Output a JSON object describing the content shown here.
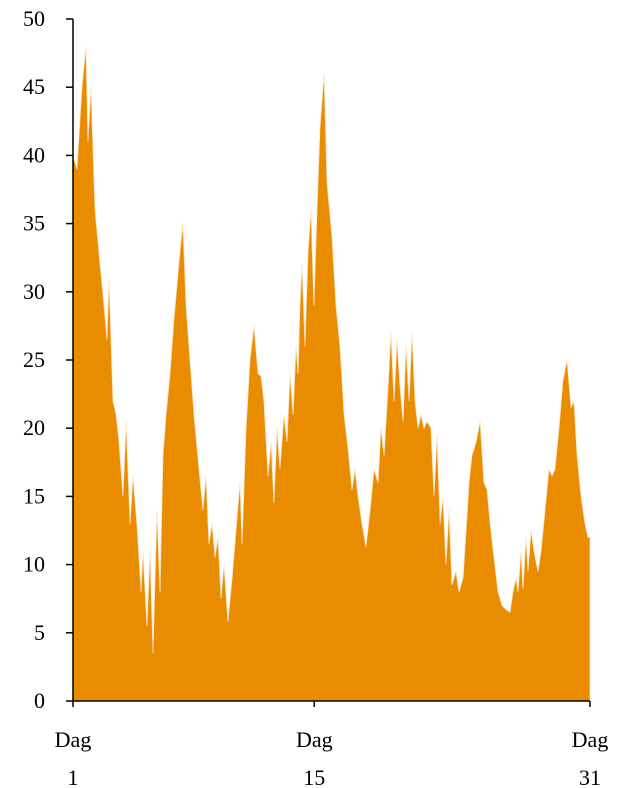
{
  "chart_data": {
    "type": "area",
    "color": "#ea8c00",
    "x": [
      1,
      1.23,
      1.52,
      1.75,
      1.87,
      2.04,
      2.28,
      2.57,
      2.8,
      2.97,
      3.09,
      3.32,
      3.5,
      3.67,
      3.9,
      4.08,
      4.31,
      4.48,
      4.71,
      4.95,
      5.06,
      5.29,
      5.47,
      5.64,
      5.87,
      6.05,
      6.22,
      6.4,
      6.63,
      6.86,
      7.21,
      7.38,
      7.56,
      7.79,
      8.02,
      8.31,
      8.54,
      8.72,
      8.89,
      9.07,
      9.24,
      9.41,
      9.59,
      9.76,
      9.99,
      10.23,
      10.46,
      10.69,
      10.81,
      11.04,
      11.27,
      11.5,
      11.74,
      11.91,
      12.08,
      12.32,
      12.49,
      12.66,
      12.84,
      13.01,
      13.24,
      13.42,
      13.59,
      13.77,
      13.94,
      14.06,
      14.17,
      14.29,
      14.46,
      14.64,
      14.81,
      14.98,
      15.16,
      15.33,
      15.57,
      15.74,
      16.03,
      16.26,
      16.49,
      16.73,
      16.96,
      17.19,
      17.36,
      17.54,
      17.77,
      18,
      18.24,
      18.47,
      18.7,
      18.87,
      19.05,
      19.28,
      19.45,
      19.63,
      19.8,
      19.98,
      20.15,
      20.32,
      20.5,
      20.67,
      20.85,
      21.02,
      21.19,
      21.37,
      21.54,
      21.77,
      21.95,
      22.12,
      22.3,
      22.47,
      22.64,
      22.82,
      22.99,
      23.22,
      23.4,
      23.63,
      23.81,
      23.98,
      24.15,
      24.39,
      24.62,
      24.85,
      25.03,
      25.2,
      25.43,
      25.66,
      25.9,
      26.13,
      26.36,
      26.53,
      26.71,
      26.82,
      27,
      27.11,
      27.29,
      27.4,
      27.58,
      27.75,
      27.98,
      28.16,
      28.39,
      28.62,
      28.8,
      28.97,
      29.2,
      29.43,
      29.67,
      29.9,
      30.07,
      30.25,
      30.48,
      30.71,
      30.88,
      31
    ],
    "values": [
      40,
      39,
      45,
      48,
      41,
      45,
      36,
      32,
      29,
      26.5,
      31,
      22,
      21,
      19,
      15,
      20.5,
      13,
      16.5,
      13,
      8,
      11,
      5.5,
      11,
      3.5,
      14,
      8,
      18,
      21,
      24,
      28,
      33,
      35,
      29,
      25,
      21,
      17,
      14,
      16.5,
      11.5,
      13,
      10.5,
      12,
      7.5,
      10,
      5.8,
      9,
      12.5,
      16,
      11.5,
      20,
      25,
      27.5,
      24,
      23.8,
      22,
      16.5,
      19,
      14.5,
      20,
      17,
      21,
      19,
      24,
      21,
      26,
      24,
      29,
      32,
      26,
      33,
      36,
      29,
      36,
      42,
      46,
      38,
      34,
      29,
      26,
      21,
      18.5,
      15.5,
      17,
      15,
      13,
      11.3,
      14,
      17,
      16,
      20,
      18,
      23,
      27,
      22,
      26.5,
      23,
      20.5,
      26,
      22,
      27,
      22,
      20,
      21,
      20,
      20.5,
      20,
      15,
      19.5,
      13,
      15,
      10,
      14,
      8.5,
      9.5,
      8,
      9,
      12.5,
      16,
      18,
      19,
      20.5,
      16,
      15.5,
      13,
      10.5,
      8,
      7,
      6.7,
      6.5,
      8,
      9,
      8,
      11,
      8.2,
      12,
      9.5,
      12.5,
      11,
      9.5,
      11,
      14,
      17,
      16.5,
      17,
      20,
      23.5,
      25,
      21.5,
      22,
      18,
      15,
      13,
      12,
      12
    ],
    "xlim": [
      1,
      31
    ],
    "xticks": [
      {
        "value": 1,
        "label": "Dag 1"
      },
      {
        "value": 15,
        "label": "Dag 15"
      },
      {
        "value": 31,
        "label": "Dag 31"
      }
    ],
    "ylim": [
      0,
      50
    ],
    "yticks": [
      0,
      5,
      10,
      15,
      20,
      25,
      30,
      35,
      40,
      45,
      50
    ]
  }
}
